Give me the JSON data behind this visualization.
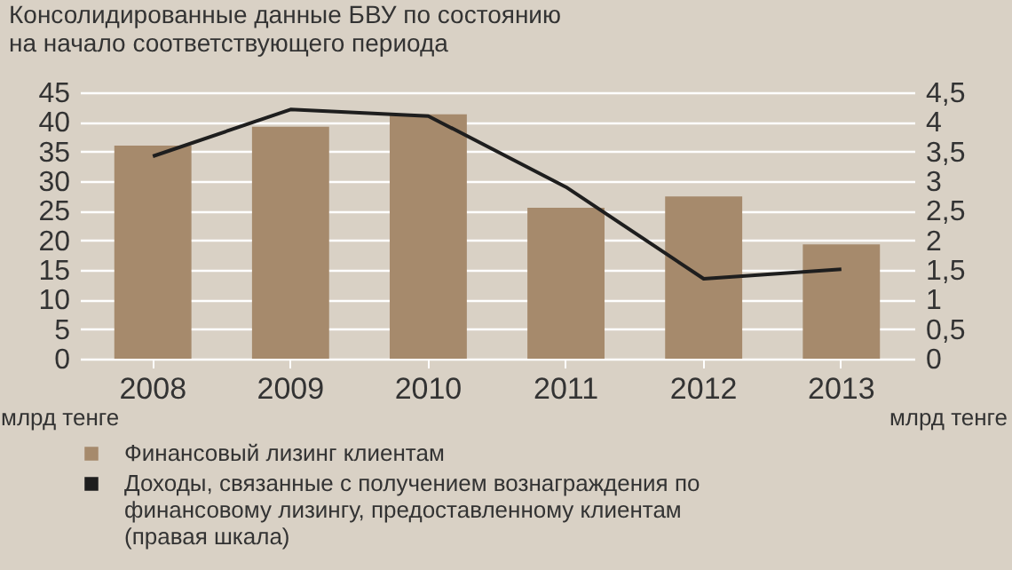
{
  "chart_data": {
    "type": "bar",
    "title": "Консолидированные данные БВУ по состоянию на начало соответствующего периода",
    "categories": [
      "2008",
      "2009",
      "2010",
      "2011",
      "2012",
      "2013"
    ],
    "series": [
      {
        "name": "Финансовый лизинг клиентам",
        "color": "#a68a6c",
        "values": [
          36,
          39.2,
          41.3,
          25.5,
          27.4,
          19.3
        ]
      },
      {
        "name": "Доходы, связанные с получением вознаграждения по финансовому лизингу, предоставленному клиентам (правая шкала)",
        "type": "line",
        "axis": "y2",
        "color": "#1e1e1e",
        "values": [
          3.42,
          4.21,
          4.1,
          2.9,
          1.35,
          1.51
        ]
      }
    ],
    "ylabel": "млрд тенге",
    "y2label": "млрд тенге",
    "ylim": [
      0,
      45
    ],
    "yticks": [
      0,
      5,
      10,
      15,
      20,
      25,
      30,
      35,
      40,
      45
    ],
    "y2lim": [
      0,
      4.5
    ],
    "y2ticks": [
      0,
      {
        "value": 0.5,
        "label": "0,5"
      },
      1,
      {
        "value": 1.5,
        "label": "1,5"
      },
      2,
      {
        "value": 2.5,
        "label": "2,5"
      },
      3,
      {
        "value": 3.5,
        "label": "3,5"
      },
      4,
      {
        "value": 4.5,
        "label": "4,5"
      }
    ],
    "grid": "y",
    "legend": "bottom"
  }
}
